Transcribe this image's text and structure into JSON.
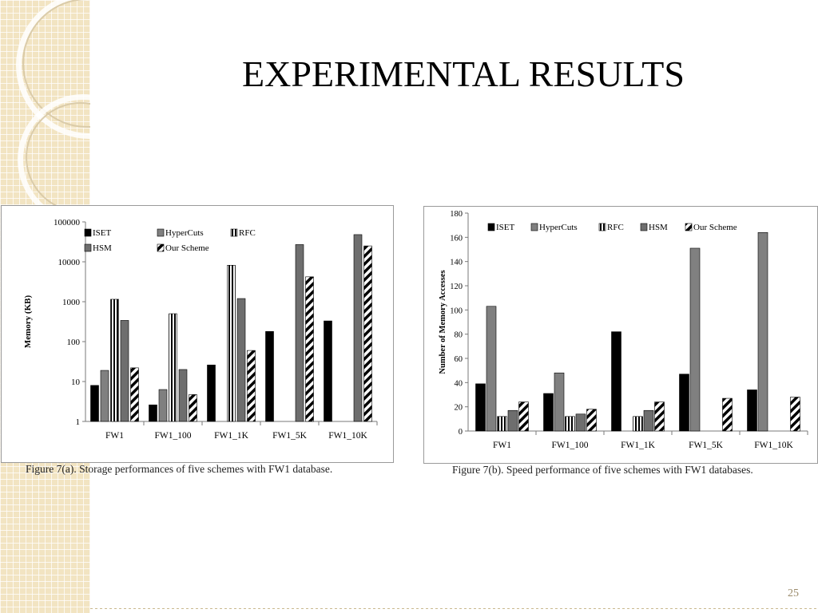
{
  "slide": {
    "title": "EXPERIMENTAL RESULTS",
    "page_number": "25"
  },
  "figures": [
    {
      "caption": "Figure 7(a). Storage performances of five schemes with FW1 database."
    },
    {
      "caption": "Figure 7(b). Speed performance of five schemes with FW1 databases."
    }
  ],
  "chart_data": [
    {
      "type": "bar",
      "scale": "log",
      "ylabel": "Memory (KB)",
      "xlabel": "",
      "ylim": [
        1,
        100000
      ],
      "yticks": [
        "1",
        "10",
        "100",
        "1000",
        "10000",
        "100000"
      ],
      "categories": [
        "FW1",
        "FW1_100",
        "FW1_1K",
        "FW1_5K",
        "FW1_10K"
      ],
      "series": [
        {
          "name": "ISET",
          "values": [
            8,
            2.6,
            26,
            180,
            330
          ],
          "color": "#000000",
          "pattern": "solid"
        },
        {
          "name": "HyperCuts",
          "values": [
            19,
            6.3,
            null,
            null,
            null
          ],
          "color": "#808080",
          "pattern": "solid"
        },
        {
          "name": "RFC",
          "values": [
            1150,
            500,
            8200,
            null,
            null
          ],
          "color": "#000000",
          "pattern": "vertical-stripes"
        },
        {
          "name": "HSM",
          "values": [
            340,
            20,
            1200,
            27000,
            48000
          ],
          "color": "#6e6e6e",
          "pattern": "solid"
        },
        {
          "name": "Our Scheme",
          "values": [
            22,
            4.7,
            60,
            4200,
            25000
          ],
          "color": "#000000",
          "pattern": "diagonal-stripes"
        }
      ],
      "legend_position": "top-left",
      "grid": false
    },
    {
      "type": "bar",
      "scale": "linear",
      "ylabel": "Number of Memory Accesses",
      "xlabel": "",
      "ylim": [
        0,
        180
      ],
      "yticks": [
        "0",
        "20",
        "40",
        "60",
        "80",
        "100",
        "120",
        "140",
        "160",
        "180"
      ],
      "categories": [
        "FW1",
        "FW1_100",
        "FW1_1K",
        "FW1_5K",
        "FW1_10K"
      ],
      "series": [
        {
          "name": "ISET",
          "values": [
            39,
            31,
            82,
            47,
            34
          ],
          "color": "#000000",
          "pattern": "solid"
        },
        {
          "name": "HyperCuts",
          "values": [
            103,
            48,
            null,
            151,
            164
          ],
          "color": "#808080",
          "pattern": "solid"
        },
        {
          "name": "RFC",
          "values": [
            12,
            12,
            12,
            null,
            null
          ],
          "color": "#000000",
          "pattern": "vertical-stripes"
        },
        {
          "name": "HSM",
          "values": [
            17,
            14,
            17,
            null,
            null
          ],
          "color": "#6e6e6e",
          "pattern": "solid"
        },
        {
          "name": "Our Scheme",
          "values": [
            24,
            18,
            24,
            27,
            28
          ],
          "color": "#000000",
          "pattern": "diagonal-stripes"
        }
      ],
      "legend_position": "top",
      "grid": false
    }
  ]
}
